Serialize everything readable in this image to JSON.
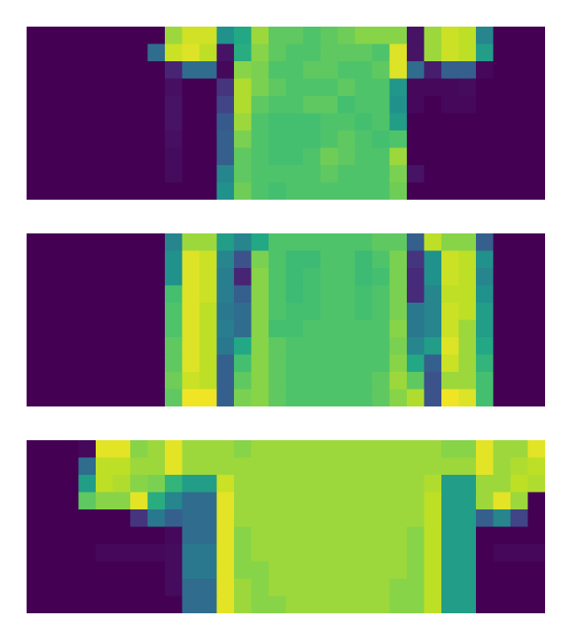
{
  "chart_data": [
    {
      "type": "heatmap",
      "tick_labels": false,
      "color_range": [
        0,
        1
      ],
      "cells": [
        [
          0,
          0,
          0,
          0,
          0,
          0,
          0,
          0,
          0.85,
          0.93,
          0.93,
          0.5,
          0.6,
          0.85,
          0.75,
          0.75,
          0.72,
          0.75,
          0.78,
          0.82,
          0.82,
          0.82,
          0.05,
          0.85,
          0.92,
          0.9,
          0.45,
          0,
          0,
          0
        ],
        [
          0,
          0,
          0,
          0,
          0,
          0,
          0,
          0.35,
          0.92,
          0.95,
          0.9,
          0.05,
          0.62,
          0.82,
          0.75,
          0.72,
          0.72,
          0.75,
          0.75,
          0.75,
          0.72,
          0.95,
          0.05,
          0.85,
          0.92,
          0.9,
          0.55,
          0,
          0,
          0
        ],
        [
          0,
          0,
          0,
          0,
          0,
          0,
          0,
          0,
          0.1,
          0.35,
          0.35,
          0.02,
          0.82,
          0.8,
          0.72,
          0.72,
          0.75,
          0.75,
          0.72,
          0.72,
          0.75,
          0.95,
          0.35,
          0.08,
          0.3,
          0.3,
          0.02,
          0,
          0,
          0
        ],
        [
          0,
          0,
          0,
          0,
          0,
          0,
          0,
          0,
          0.04,
          0,
          0,
          0.15,
          0.88,
          0.8,
          0.75,
          0.72,
          0.72,
          0.72,
          0.75,
          0.72,
          0.72,
          0.52,
          0.02,
          0.02,
          0.02,
          0.03,
          0,
          0,
          0,
          0
        ],
        [
          0,
          0,
          0,
          0,
          0,
          0,
          0,
          0,
          0.05,
          0,
          0,
          0.2,
          0.88,
          0.75,
          0.72,
          0.72,
          0.75,
          0.75,
          0.7,
          0.72,
          0.72,
          0.5,
          0.02,
          0,
          0.02,
          0.02,
          0,
          0,
          0,
          0
        ],
        [
          0,
          0,
          0,
          0,
          0,
          0,
          0,
          0,
          0.05,
          0,
          0,
          0.28,
          0.85,
          0.72,
          0.7,
          0.7,
          0.7,
          0.72,
          0.72,
          0.7,
          0.72,
          0.55,
          0,
          0,
          0,
          0,
          0,
          0,
          0,
          0
        ],
        [
          0,
          0,
          0,
          0,
          0,
          0,
          0,
          0,
          0.04,
          0,
          0,
          0.3,
          0.8,
          0.72,
          0.7,
          0.7,
          0.7,
          0.72,
          0.75,
          0.72,
          0.7,
          0.72,
          0,
          0,
          0,
          0,
          0,
          0,
          0,
          0
        ],
        [
          0,
          0,
          0,
          0,
          0,
          0,
          0,
          0,
          0.03,
          0,
          0,
          0.3,
          0.75,
          0.72,
          0.7,
          0.7,
          0.72,
          0.78,
          0.75,
          0.72,
          0.72,
          0.85,
          0,
          0,
          0,
          0,
          0,
          0,
          0,
          0
        ],
        [
          0,
          0,
          0,
          0,
          0,
          0,
          0,
          0,
          0.03,
          0,
          0,
          0.45,
          0.75,
          0.72,
          0.72,
          0.72,
          0.72,
          0.75,
          0.72,
          0.72,
          0.72,
          0.8,
          0.05,
          0,
          0,
          0,
          0,
          0,
          0,
          0
        ],
        [
          0,
          0,
          0,
          0,
          0,
          0,
          0,
          0,
          0,
          0,
          0,
          0.5,
          0.78,
          0.72,
          0.7,
          0.72,
          0.72,
          0.72,
          0.72,
          0.72,
          0.72,
          0.78,
          0,
          0,
          0,
          0,
          0,
          0,
          0,
          0
        ]
      ]
    },
    {
      "type": "heatmap",
      "tick_labels": false,
      "color_range": [
        0,
        1
      ],
      "cells": [
        [
          0,
          0,
          0,
          0,
          0,
          0,
          0,
          0,
          0.45,
          0.85,
          0.85,
          0.55,
          0.45,
          0.6,
          0.72,
          0.72,
          0.72,
          0.72,
          0.72,
          0.72,
          0.75,
          0.75,
          0.3,
          0.9,
          0.82,
          0.82,
          0.3,
          0,
          0,
          0
        ],
        [
          0,
          0,
          0,
          0,
          0,
          0,
          0,
          0,
          0.5,
          0.95,
          0.92,
          0.45,
          0.25,
          0.8,
          0.72,
          0.68,
          0.68,
          0.72,
          0.72,
          0.68,
          0.72,
          0.8,
          0.15,
          0.5,
          0.92,
          0.9,
          0.5,
          0,
          0,
          0
        ],
        [
          0,
          0,
          0,
          0,
          0,
          0,
          0,
          0,
          0.5,
          0.95,
          0.92,
          0.42,
          0.1,
          0.82,
          0.72,
          0.68,
          0.7,
          0.72,
          0.72,
          0.68,
          0.7,
          0.8,
          0.12,
          0.5,
          0.92,
          0.9,
          0.45,
          0,
          0,
          0
        ],
        [
          0,
          0,
          0,
          0,
          0,
          0,
          0,
          0,
          0.7,
          0.95,
          0.92,
          0.42,
          0.3,
          0.82,
          0.72,
          0.68,
          0.7,
          0.72,
          0.72,
          0.7,
          0.72,
          0.8,
          0.12,
          0.45,
          0.9,
          0.9,
          0.5,
          0,
          0,
          0
        ],
        [
          0,
          0,
          0,
          0,
          0,
          0,
          0,
          0,
          0.72,
          0.95,
          0.9,
          0.4,
          0.35,
          0.82,
          0.72,
          0.7,
          0.7,
          0.72,
          0.72,
          0.7,
          0.72,
          0.8,
          0.4,
          0.45,
          0.92,
          0.9,
          0.55,
          0,
          0,
          0
        ],
        [
          0,
          0,
          0,
          0,
          0,
          0,
          0,
          0,
          0.72,
          0.95,
          0.9,
          0.42,
          0.35,
          0.82,
          0.7,
          0.7,
          0.72,
          0.72,
          0.72,
          0.72,
          0.72,
          0.82,
          0.4,
          0.45,
          0.92,
          0.85,
          0.55,
          0,
          0,
          0
        ],
        [
          0,
          0,
          0,
          0,
          0,
          0,
          0,
          0,
          0.75,
          0.95,
          0.9,
          0.4,
          0.6,
          0.82,
          0.75,
          0.72,
          0.72,
          0.72,
          0.72,
          0.72,
          0.72,
          0.8,
          0.45,
          0.55,
          0.95,
          0.85,
          0.6,
          0,
          0,
          0
        ],
        [
          0,
          0,
          0,
          0,
          0,
          0,
          0,
          0,
          0.75,
          0.95,
          0.9,
          0.3,
          0.7,
          0.82,
          0.75,
          0.72,
          0.72,
          0.72,
          0.72,
          0.72,
          0.72,
          0.82,
          0.6,
          0.3,
          0.92,
          0.85,
          0.65,
          0,
          0,
          0
        ],
        [
          0,
          0,
          0,
          0,
          0,
          0,
          0,
          0,
          0.78,
          0.92,
          0.9,
          0.3,
          0.75,
          0.82,
          0.75,
          0.72,
          0.72,
          0.72,
          0.72,
          0.72,
          0.75,
          0.85,
          0.75,
          0.25,
          0.85,
          0.85,
          0.7,
          0,
          0,
          0
        ],
        [
          0,
          0,
          0,
          0,
          0,
          0,
          0,
          0,
          0.75,
          0.98,
          0.98,
          0.3,
          0.8,
          0.82,
          0.75,
          0.72,
          0.72,
          0.72,
          0.72,
          0.72,
          0.75,
          0.82,
          0.88,
          0.25,
          0.98,
          0.95,
          0.7,
          0,
          0,
          0
        ]
      ]
    },
    {
      "type": "heatmap",
      "tick_labels": false,
      "color_range": [
        0,
        1
      ],
      "cells": [
        [
          0,
          0,
          0,
          0.02,
          0.96,
          0.96,
          0.82,
          0.85,
          0.96,
          0.85,
          0.85,
          0.85,
          0.82,
          0.85,
          0.85,
          0.85,
          0.85,
          0.85,
          0.85,
          0.85,
          0.85,
          0.85,
          0.85,
          0.85,
          0.82,
          0.82,
          0.96,
          0.85,
          0.85,
          0.96
        ],
        [
          0,
          0,
          0,
          0.35,
          0.9,
          0.9,
          0.85,
          0.85,
          0.96,
          0.85,
          0.85,
          0.85,
          0.85,
          0.85,
          0.85,
          0.85,
          0.85,
          0.85,
          0.85,
          0.85,
          0.85,
          0.85,
          0.85,
          0.85,
          0.85,
          0.85,
          0.96,
          0.85,
          0.88,
          0.9
        ],
        [
          0,
          0,
          0,
          0.55,
          0.9,
          0.88,
          0.82,
          0.8,
          0.65,
          0.55,
          0.55,
          0.92,
          0.85,
          0.85,
          0.85,
          0.85,
          0.85,
          0.85,
          0.85,
          0.85,
          0.85,
          0.85,
          0.85,
          0.88,
          0.55,
          0.55,
          0.85,
          0.85,
          0.9,
          0.88
        ],
        [
          0,
          0,
          0,
          0.75,
          0.82,
          0.82,
          0.96,
          0.62,
          0.45,
          0.35,
          0.35,
          0.96,
          0.85,
          0.85,
          0.85,
          0.85,
          0.85,
          0.85,
          0.85,
          0.85,
          0.85,
          0.85,
          0.85,
          0.9,
          0.55,
          0.55,
          0.85,
          0.96,
          0.85,
          0
        ],
        [
          0,
          0,
          0,
          0,
          0,
          0,
          0.15,
          0.4,
          0.3,
          0.35,
          0.35,
          0.96,
          0.85,
          0.85,
          0.85,
          0.85,
          0.85,
          0.85,
          0.85,
          0.85,
          0.85,
          0.85,
          0.85,
          0.9,
          0.55,
          0.55,
          0.3,
          0.45,
          0.2,
          0
        ],
        [
          0,
          0,
          0,
          0,
          0,
          0,
          0,
          0,
          0.02,
          0.35,
          0.35,
          0.96,
          0.82,
          0.85,
          0.85,
          0.85,
          0.85,
          0.85,
          0.85,
          0.85,
          0.85,
          0.85,
          0.82,
          0.9,
          0.55,
          0.55,
          0,
          0,
          0,
          0
        ],
        [
          0,
          0,
          0,
          0,
          0.02,
          0.02,
          0.02,
          0.02,
          0.03,
          0.4,
          0.4,
          0.96,
          0.82,
          0.85,
          0.85,
          0.85,
          0.85,
          0.85,
          0.85,
          0.85,
          0.85,
          0.85,
          0.82,
          0.9,
          0.55,
          0.55,
          0,
          0.02,
          0.02,
          0.02
        ],
        [
          0,
          0,
          0,
          0,
          0,
          0,
          0,
          0,
          0.03,
          0.4,
          0.4,
          0.96,
          0.82,
          0.82,
          0.85,
          0.85,
          0.85,
          0.85,
          0.85,
          0.85,
          0.85,
          0.85,
          0.82,
          0.9,
          0.55,
          0.55,
          0,
          0,
          0,
          0
        ],
        [
          0,
          0,
          0,
          0,
          0,
          0,
          0,
          0,
          0.03,
          0.35,
          0.35,
          0.96,
          0.85,
          0.82,
          0.85,
          0.85,
          0.85,
          0.85,
          0.85,
          0.85,
          0.85,
          0.82,
          0.82,
          0.9,
          0.55,
          0.55,
          0,
          0,
          0,
          0
        ],
        [
          0,
          0,
          0,
          0,
          0,
          0,
          0,
          0,
          0,
          0.35,
          0.35,
          0.96,
          0.85,
          0.82,
          0.82,
          0.85,
          0.85,
          0.85,
          0.85,
          0.85,
          0.85,
          0.82,
          0.82,
          0.9,
          0.55,
          0.55,
          0,
          0,
          0,
          0
        ]
      ]
    }
  ]
}
